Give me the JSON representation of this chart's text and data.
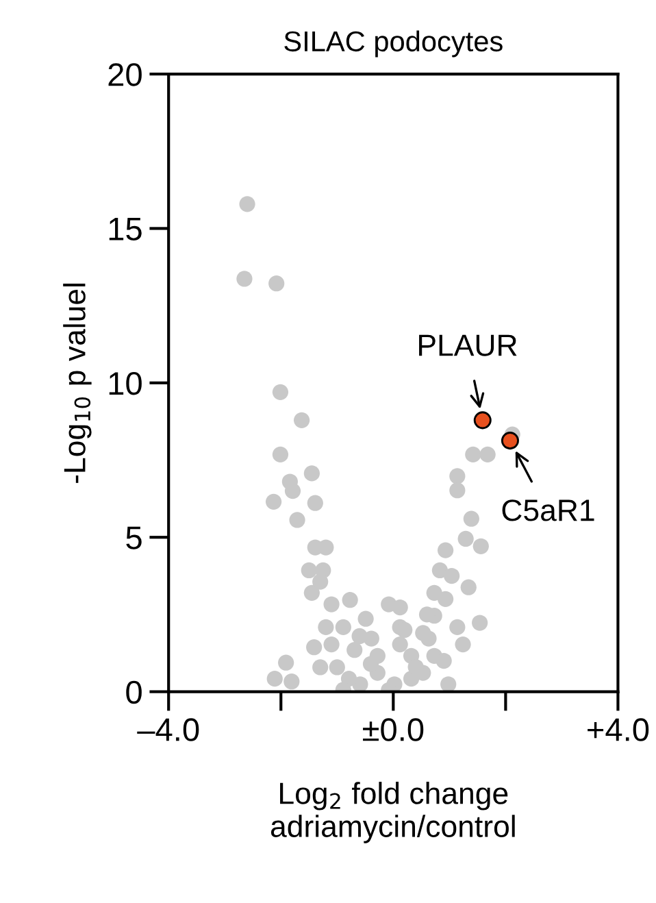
{
  "chart_data": {
    "type": "scatter",
    "title": "SILAC podocytes",
    "xlabel": "Log$_{2}$ fold change\nadriamycin/control",
    "ylabel": "-Log$_{10}$ p valuel",
    "marker": "circle",
    "xlim": [
      -4,
      4
    ],
    "ylim": [
      0,
      20
    ],
    "xticks": [
      {
        "value": -4,
        "label": "–4.0"
      },
      {
        "value": -2,
        "label": null
      },
      {
        "value": 0,
        "label": "±0.0"
      },
      {
        "value": 2,
        "label": null
      },
      {
        "value": 4,
        "label": "+4.0"
      }
    ],
    "yticks": [
      0,
      5,
      10,
      15,
      20
    ],
    "series": [
      {
        "color": "#c8c8c8",
        "x": [
          -2.6,
          -2.65,
          -2.08,
          -2.01,
          -1.63,
          -2.01,
          -1.84,
          -1.79,
          -1.45,
          -2.13,
          -1.71,
          -1.39,
          -1.39,
          -1.25,
          -1.45,
          -0.77,
          -1.41,
          -1.91,
          -2.11,
          -1.81,
          2.12,
          1.42,
          1.68,
          1.14,
          1.14,
          1.39,
          1.56,
          1.29,
          0.93,
          1.34,
          1.54,
          1.24,
          0.98,
          -0.08,
          0.12,
          -0.49,
          -0.89,
          -1.2,
          0.73,
          0.73,
          0.83,
          1.04,
          0.63,
          0.32,
          -0.28,
          -0.69,
          -1.0,
          -0.59,
          0.02,
          0.53,
          0.12,
          -0.39,
          -1.1,
          -1.3,
          0.12,
          0.53,
          -0.28,
          -0.79,
          0.32,
          0.73,
          1.14,
          0.93,
          -1.3,
          -1.2,
          -1.5,
          -1.1,
          -0.89,
          -0.08,
          0.4,
          -0.4,
          0.2,
          -0.6,
          0.9,
          0.6
        ],
        "values": [
          15.79,
          13.37,
          13.22,
          9.7,
          8.79,
          7.68,
          6.8,
          6.5,
          7.07,
          6.15,
          5.56,
          6.11,
          4.67,
          3.93,
          3.2,
          2.97,
          1.44,
          0.94,
          0.42,
          0.33,
          8.33,
          7.68,
          7.68,
          6.98,
          6.52,
          5.6,
          4.71,
          4.95,
          4.58,
          3.38,
          2.23,
          1.53,
          0.24,
          2.83,
          2.73,
          2.36,
          2.09,
          2.09,
          2.46,
          3.2,
          3.93,
          3.75,
          1.72,
          1.16,
          1.16,
          1.35,
          0.79,
          0.24,
          0.24,
          0.61,
          1.53,
          1.72,
          1.53,
          0.79,
          2.09,
          1.9,
          0.61,
          0.42,
          0.42,
          1.16,
          2.09,
          3.0,
          3.56,
          4.67,
          3.93,
          2.83,
          0.06,
          0.05,
          0.8,
          0.9,
          2.0,
          1.8,
          1.0,
          2.5
        ]
      },
      {
        "color": "#e8501e",
        "x": [
          1.59,
          2.08
        ],
        "values": [
          8.79,
          8.13
        ]
      }
    ],
    "annotations": [
      {
        "text": "PLAUR",
        "x": 1.59,
        "y": 8.79
      },
      {
        "text": "C5aR1",
        "x": 2.08,
        "y": 8.13
      }
    ]
  }
}
